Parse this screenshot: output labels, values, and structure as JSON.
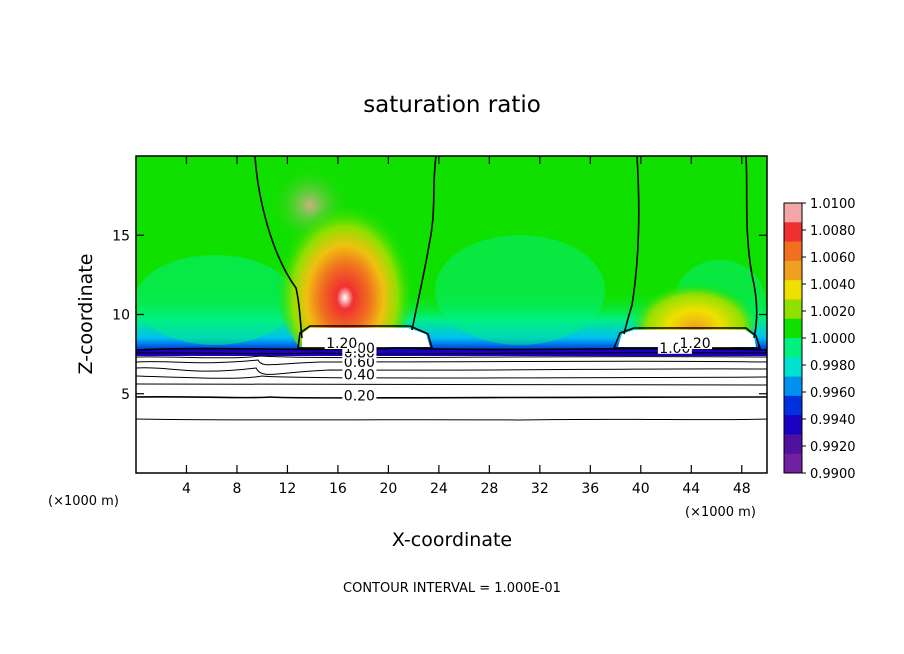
{
  "chart_data": {
    "type": "heatmap",
    "title": "saturation ratio",
    "xlabel": "X-coordinate",
    "ylabel": "Z-coordinate",
    "x_unit": "(×1000 m)",
    "x_unit_right": "(×1000 m)",
    "footnote": "CONTOUR INTERVAL = 1.000E-01",
    "xlim": [
      0,
      50
    ],
    "ylim": [
      0,
      20
    ],
    "x_ticks": [
      4,
      8,
      12,
      16,
      20,
      24,
      28,
      32,
      36,
      40,
      44,
      48
    ],
    "y_ticks": [
      5,
      10,
      15
    ],
    "colorbar": {
      "levels": [
        "1.0100",
        "1.0080",
        "1.0060",
        "1.0040",
        "1.0020",
        "1.0000",
        "0.9980",
        "0.9960",
        "0.9940",
        "0.9920",
        "0.9900"
      ],
      "min": 0.99,
      "max": 1.01,
      "colors": [
        "#f4a6a6",
        "#f03030",
        "#f07020",
        "#f0a020",
        "#f0e000",
        "#90e000",
        "#10e000",
        "#00f080",
        "#00e0d0",
        "#0090f0",
        "#0030e0",
        "#1a00c0",
        "#5010a0",
        "#7020a0"
      ]
    },
    "contour_labels": [
      {
        "text": "0.20",
        "x": 17.7,
        "z": 4.9
      },
      {
        "text": "0.40",
        "x": 17.7,
        "z": 6.2
      },
      {
        "text": "0.60",
        "x": 17.7,
        "z": 7.0
      },
      {
        "text": "0.80",
        "x": 17.7,
        "z": 7.6
      },
      {
        "text": "1.00",
        "x": 17.7,
        "z": 7.9
      },
      {
        "text": "1.20",
        "x": 16.3,
        "z": 8.2
      },
      {
        "text": "1.00",
        "x": 42.7,
        "z": 7.9
      },
      {
        "text": "1.20",
        "x": 44.3,
        "z": 8.2
      }
    ]
  }
}
